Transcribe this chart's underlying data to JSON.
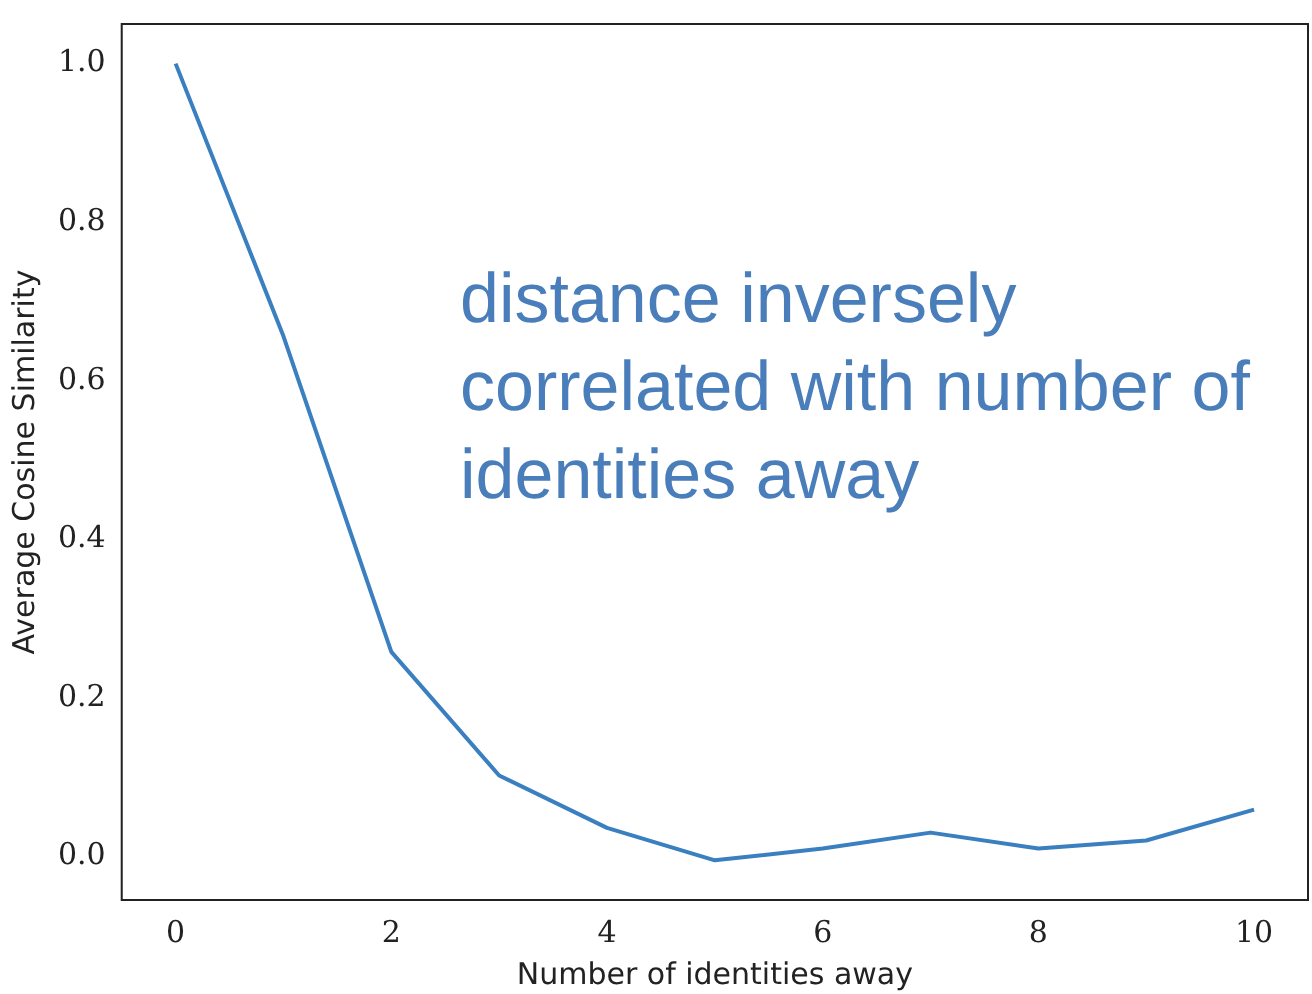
{
  "chart_data": {
    "type": "line",
    "xlabel": "Number of identities away",
    "ylabel": "Average Cosine Similarity",
    "x": [
      0,
      1,
      2,
      3,
      4,
      5,
      6,
      7,
      8,
      9,
      10
    ],
    "series": [
      {
        "color": "#3a7fbf",
        "values": [
          1.0,
          0.656,
          0.258,
          0.102,
          0.036,
          -0.005,
          0.01,
          0.03,
          0.01,
          0.02,
          0.059
        ]
      }
    ],
    "xlim": [
      -0.5,
      10.5
    ],
    "xticks": [
      0,
      2,
      4,
      6,
      8,
      10
    ],
    "ylim": [
      -0.055,
      1.05
    ],
    "yticks": [
      {
        "value": 0,
        "label": "0.0"
      },
      0.2,
      0.4,
      0.6,
      0.8,
      {
        "value": 1,
        "label": "1.0"
      }
    ],
    "grid": false,
    "legend": false,
    "marker": "none",
    "line_style": "solid",
    "annotations": [
      "distance inversely correlated with number of identities away"
    ]
  }
}
